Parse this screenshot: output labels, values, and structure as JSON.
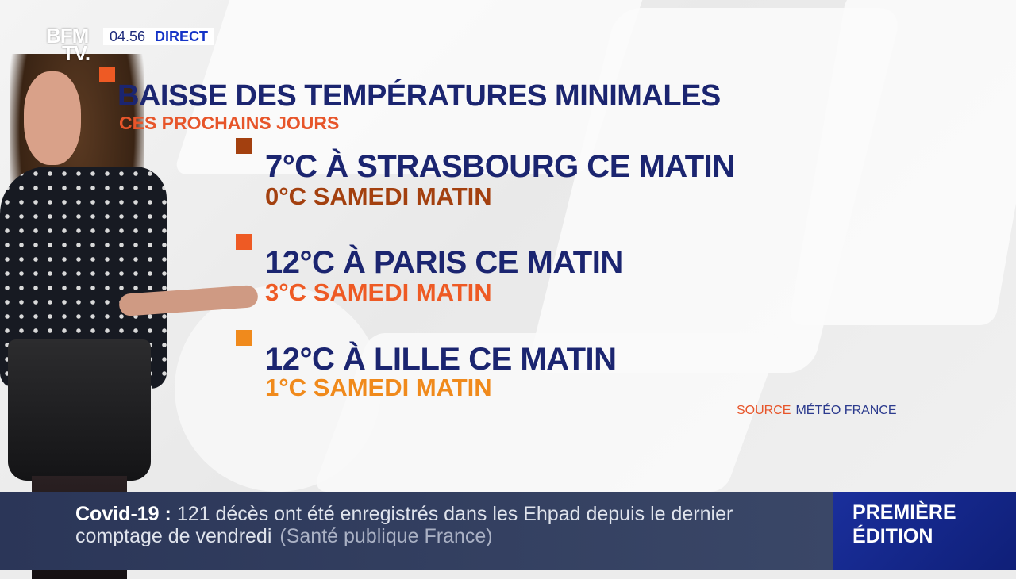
{
  "header": {
    "logo_line1": "BFM",
    "logo_line2": "TV.",
    "time": "04.56",
    "live": "DIRECT"
  },
  "graphic": {
    "title": "BAISSE DES TEMPÉRATURES MINIMALES",
    "subtitle": "CES PROCHAINS JOURS",
    "items": [
      {
        "main": "7°C À STRASBOURG CE MATIN",
        "sub": "0°C SAMEDI MATIN",
        "sub_color": "#a3400f",
        "marker_color": "#a3400f"
      },
      {
        "main": "12°C À PARIS CE MATIN",
        "sub": "3°C SAMEDI MATIN",
        "sub_color": "#ee5a24",
        "marker_color": "#ee5a24"
      },
      {
        "main": "12°C À LILLE CE MATIN",
        "sub": "1°C SAMEDI MATIN",
        "sub_color": "#f08a1c",
        "marker_color": "#f08a1c"
      }
    ],
    "title_marker_color": "#ee5a24",
    "source_label": "SOURCE",
    "source_value": "MÉTÉO FRANCE"
  },
  "ticker": {
    "keyword": "Covid-19",
    "separator": ":",
    "text_line1": "121 décès ont été enregistrés dans les Ehpad depuis le dernier",
    "text_line2": "comptage de vendredi",
    "source": "(Santé publique France)"
  },
  "edition": {
    "line1": "PREMIÈRE",
    "line2": "ÉDITION"
  },
  "colors": {
    "navy": "#1b2570",
    "orange": "#e7552a",
    "ticker_bg": "#2b3658",
    "edition_bg": "#1a2f9c"
  }
}
